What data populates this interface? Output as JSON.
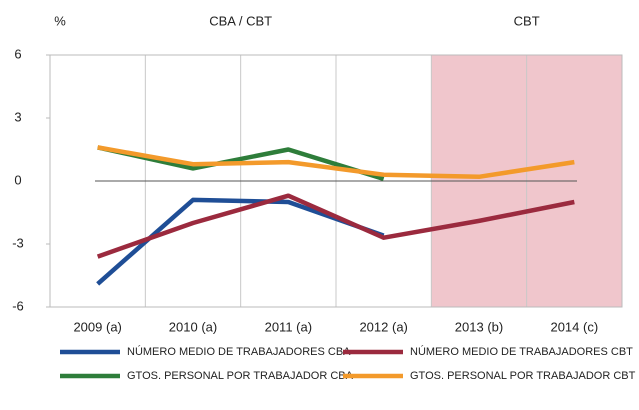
{
  "chart_data": {
    "type": "line",
    "unit_label": "%",
    "regions": [
      {
        "label": "CBA / CBT",
        "start": 0,
        "end": 3,
        "shaded": false
      },
      {
        "label": "CBT",
        "start": 4,
        "end": 5,
        "shaded": true,
        "color": "#f0c6cc"
      }
    ],
    "categories": [
      "2009 (a)",
      "2010 (a)",
      "2011 (a)",
      "2012 (a)",
      "2013 (b)",
      "2014 (c)"
    ],
    "series": [
      {
        "name": "NÚMERO MEDIO DE TRABAJADORES CBA",
        "color": "#1f4e96",
        "values": [
          -4.9,
          -0.9,
          -1.0,
          -2.6,
          null,
          null
        ]
      },
      {
        "name": "NÚMERO MEDIO DE TRABAJADORES CBT",
        "color": "#9b2a3e",
        "values": [
          -3.6,
          -2.0,
          -0.7,
          -2.7,
          -1.9,
          -1.0
        ]
      },
      {
        "name": "GTOS. PERSONAL POR TRABAJADOR CBA",
        "color": "#2e7d3a",
        "values": [
          1.6,
          0.6,
          1.5,
          0.1,
          null,
          null
        ]
      },
      {
        "name": "GTOS. PERSONAL POR TRABAJADOR CBT",
        "color": "#f39a2b",
        "values": [
          1.6,
          0.8,
          0.9,
          0.3,
          0.2,
          0.9
        ]
      }
    ],
    "ylim": [
      -6,
      6
    ],
    "yticks": [
      -6,
      -3,
      0,
      3,
      6
    ]
  }
}
